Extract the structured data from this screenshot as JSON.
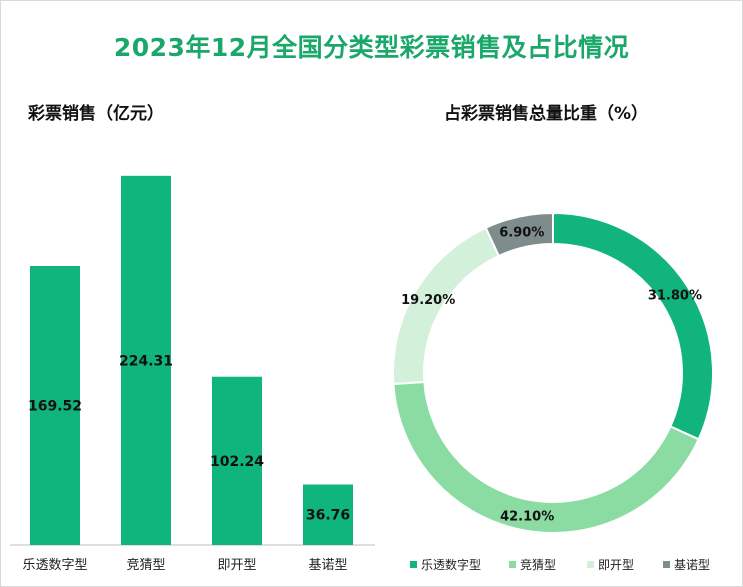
{
  "title": "2023年12月全国分类型彩票销售及占比情况",
  "chart_data": [
    {
      "type": "bar",
      "title": "彩票销售（亿元）",
      "categories": [
        "乐透数字型",
        "竞猜型",
        "即开型",
        "基诺型"
      ],
      "values": [
        169.52,
        224.31,
        102.24,
        36.76
      ],
      "value_labels": [
        "169.52",
        "224.31",
        "102.24",
        "36.76"
      ],
      "ylim": [
        0,
        240
      ],
      "grid": false,
      "bar_color": "#0fb57c"
    },
    {
      "type": "pie",
      "style": "donut",
      "title": "占彩票销售总量比重（%）",
      "categories": [
        "乐透数字型",
        "竞猜型",
        "即开型",
        "基诺型"
      ],
      "values": [
        31.8,
        42.1,
        19.2,
        6.9
      ],
      "value_labels": [
        "31.80%",
        "42.10%",
        "19.20%",
        "6.90%"
      ],
      "colors": [
        "#10b47c",
        "#8adca3",
        "#d3f0da",
        "#7f8c8c"
      ],
      "legend_position": "bottom"
    }
  ]
}
